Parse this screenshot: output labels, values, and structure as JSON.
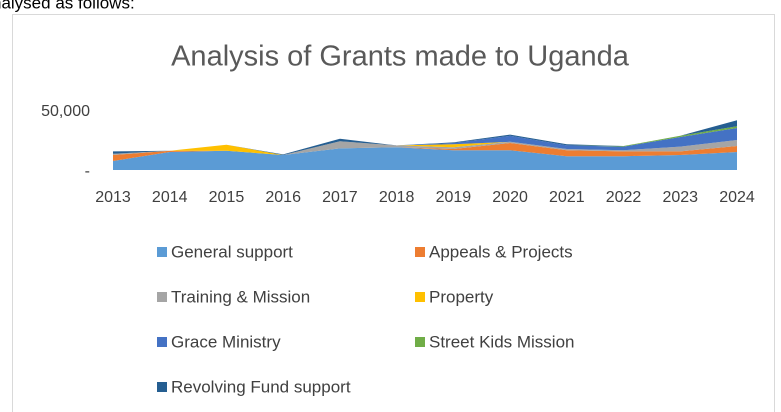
{
  "caption": "nalysed as follows:",
  "chart_data": {
    "type": "stacked_area",
    "title": "Analysis of Grants made to Uganda",
    "categories": [
      "2013",
      "2014",
      "2015",
      "2016",
      "2017",
      "2018",
      "2019",
      "2020",
      "2021",
      "2022",
      "2023",
      "2024"
    ],
    "series": [
      {
        "name": "General support",
        "color": "#5b9bd5",
        "values": [
          7500,
          15000,
          16000,
          12500,
          18000,
          19000,
          16500,
          16500,
          11500,
          11500,
          12500,
          15000
        ]
      },
      {
        "name": "Appeals & Projects",
        "color": "#ed7d31",
        "values": [
          5000,
          1000,
          0,
          0,
          0,
          0,
          1000,
          6000,
          5000,
          4000,
          3000,
          5000
        ]
      },
      {
        "name": "Training & Mission",
        "color": "#a5a5a5",
        "values": [
          1000,
          0,
          0,
          0,
          6000,
          1500,
          1500,
          1000,
          1000,
          1000,
          4000,
          5000
        ]
      },
      {
        "name": "Property",
        "color": "#ffc000",
        "values": [
          0,
          0,
          5000,
          0,
          0,
          0,
          2500,
          0,
          0,
          0,
          0,
          0
        ]
      },
      {
        "name": "Grace Ministry",
        "color": "#4472c4",
        "values": [
          0,
          0,
          0,
          0,
          0,
          0,
          1000,
          5000,
          3000,
          3000,
          8000,
          10000
        ]
      },
      {
        "name": "Street Kids Mission",
        "color": "#70ad47",
        "values": [
          0,
          0,
          0,
          0,
          0,
          0,
          0,
          0,
          0,
          500,
          1000,
          1500
        ]
      },
      {
        "name": "Revolving Fund support",
        "color": "#255e91",
        "values": [
          2000,
          0,
          0,
          500,
          2000,
          0,
          500,
          1000,
          1000,
          0,
          0,
          5000
        ]
      }
    ],
    "ylim": [
      0,
      50000
    ],
    "yticks": [
      {
        "value": 0,
        "label": "-"
      },
      {
        "value": 50000,
        "label": "50,000"
      }
    ],
    "legend": "bottom"
  }
}
